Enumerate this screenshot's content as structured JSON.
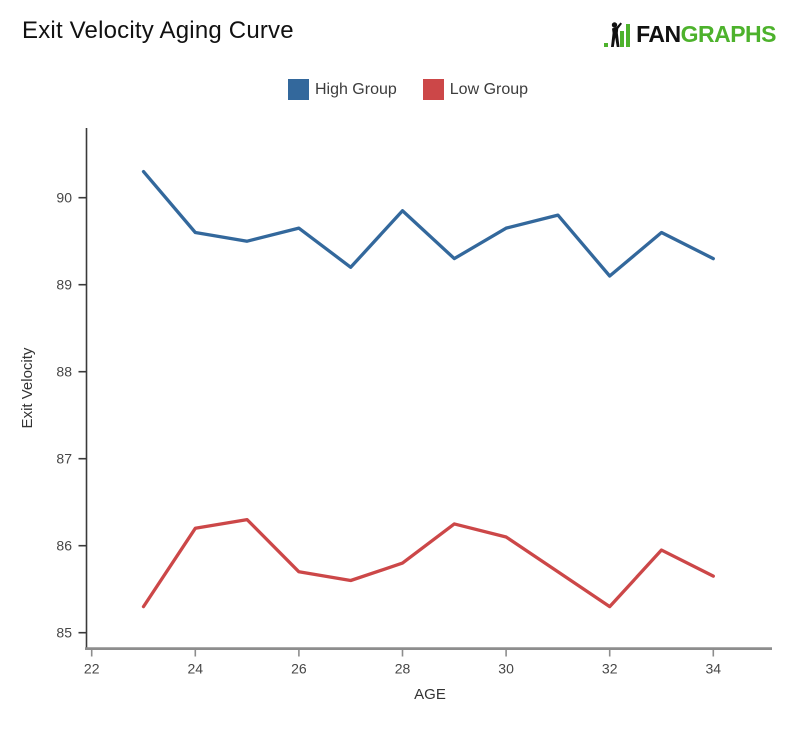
{
  "header": {
    "title": "Exit Velocity Aging Curve",
    "logo": {
      "fan": "FAN",
      "graphs": "GRAPHS",
      "green": "#4DB22C",
      "black": "#111111"
    }
  },
  "legend": {
    "items": [
      {
        "label": "High Group",
        "color": "#33689C"
      },
      {
        "label": "Low Group",
        "color": "#CC4748"
      }
    ]
  },
  "chart_data": {
    "type": "line",
    "title": "Exit Velocity Aging Curve",
    "xlabel": "AGE",
    "ylabel": "Exit Velocity",
    "x": [
      23,
      24,
      25,
      26,
      27,
      28,
      29,
      30,
      31,
      32,
      33,
      34
    ],
    "series": [
      {
        "name": "High Group",
        "color": "#33689C",
        "values": [
          90.3,
          89.6,
          89.5,
          89.65,
          89.2,
          89.85,
          89.3,
          89.65,
          89.8,
          89.1,
          89.6,
          89.3
        ]
      },
      {
        "name": "Low Group",
        "color": "#CC4748",
        "values": [
          85.3,
          86.2,
          86.3,
          85.7,
          85.6,
          85.8,
          86.25,
          86.1,
          85.7,
          85.3,
          85.95,
          85.65
        ]
      }
    ],
    "x_ticks": [
      22,
      24,
      26,
      28,
      30,
      32,
      34
    ],
    "y_ticks": [
      85,
      86,
      87,
      88,
      89,
      90
    ],
    "xlim": [
      21.9,
      35.1
    ],
    "ylim": [
      84.8,
      90.85
    ],
    "grid": false,
    "legend_position": "top-center",
    "axis_colors": {
      "y_axis": "#3a3a3a",
      "x_axis": "#8d8d8d"
    }
  }
}
